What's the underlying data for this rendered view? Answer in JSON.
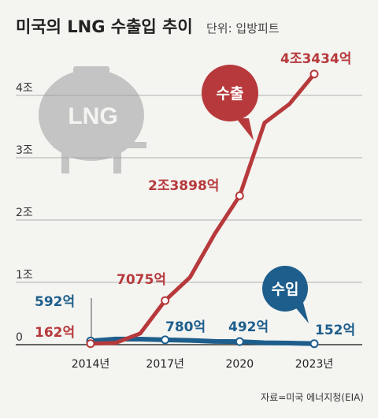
{
  "title": "미국의 LNG 수출입 추이",
  "unit_label": "단위: 입방피트",
  "source": "자료=미국 에너지청(EIA)",
  "icon": {
    "name": "lng-tank-icon",
    "text": "LNG"
  },
  "colors": {
    "export": "#b7393b",
    "import": "#1e5e8c",
    "grid": "#9a9a9a",
    "tank": "#c4c4c4"
  },
  "chart_data": {
    "type": "line",
    "x": [
      2014,
      2015,
      2016,
      2017,
      2018,
      2019,
      2020,
      2021,
      2022,
      2023
    ],
    "xlim": [
      2014,
      2023
    ],
    "ylim": [
      0,
      4.5
    ],
    "y_ticks": [
      {
        "value": 0,
        "label": "0"
      },
      {
        "value": 1,
        "label": "1조"
      },
      {
        "value": 2,
        "label": "2조"
      },
      {
        "value": 3,
        "label": "3조"
      },
      {
        "value": 4,
        "label": "4조"
      }
    ],
    "x_ticks": [
      {
        "value": 2014,
        "label": "2014년"
      },
      {
        "value": 2017,
        "label": "2017년"
      },
      {
        "value": 2020,
        "label": "2020"
      },
      {
        "value": 2023,
        "label": "2023년"
      }
    ],
    "grid": true,
    "series": [
      {
        "name": "수출",
        "values": [
          0.0162,
          0.028,
          0.18,
          0.7075,
          1.08,
          1.78,
          2.3898,
          3.56,
          3.86,
          4.3434
        ],
        "labels": [
          {
            "index": 0,
            "text": "162억"
          },
          {
            "index": 3,
            "text": "7075억"
          },
          {
            "index": 6,
            "text": "2조3898억"
          },
          {
            "index": 9,
            "text": "4조3434억"
          }
        ]
      },
      {
        "name": "수입",
        "values": [
          0.0592,
          0.09,
          0.088,
          0.078,
          0.068,
          0.052,
          0.0492,
          0.03,
          0.026,
          0.0152
        ],
        "labels": [
          {
            "index": 0,
            "text": "592억"
          },
          {
            "index": 3,
            "text": "780억"
          },
          {
            "index": 6,
            "text": "492억"
          },
          {
            "index": 9,
            "text": "152억"
          }
        ]
      }
    ]
  }
}
